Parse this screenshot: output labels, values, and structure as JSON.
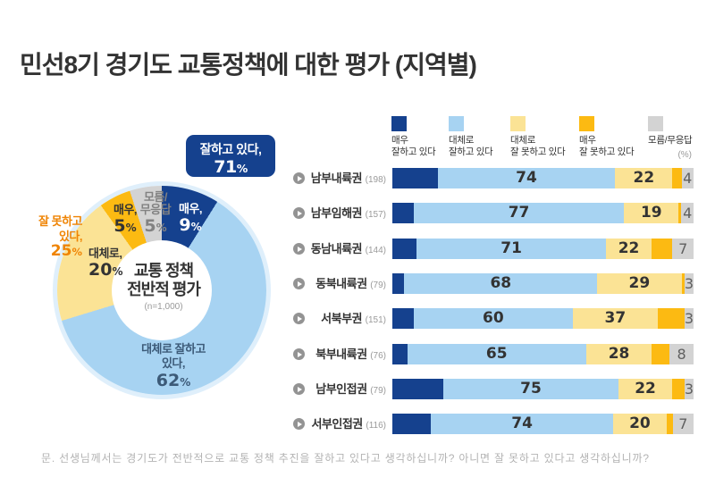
{
  "title": "민선8기 경기도 교통정책에 대한 평가 (지역별)",
  "footnote": "문. 선생님께서는 경기도가 전반적으로 교통 정책 추진을 잘하고 있다고 생각하십니까?  아니면 잘 못하고 있다고 생각하십니까?",
  "unit_label": "(%)",
  "colors": {
    "navy": "#15418e",
    "blue": "#a7d3f2",
    "yellow": "#fbe395",
    "gold": "#fcba12",
    "gray": "#d3d3d3",
    "orange": "#ef8404",
    "title_text": "#333333"
  },
  "donut": {
    "callout": {
      "line1": "잘하고 있다,",
      "value": "71",
      "unit": "%"
    },
    "center": {
      "line1": "교통 정책",
      "line2": "전반적 평가",
      "n": "(n=1,000)"
    },
    "negative_label": {
      "line1": "잘 못하고",
      "line2": "있다,",
      "value": "25",
      "unit": "%"
    },
    "slices": [
      {
        "name": "매우 잘하고 있다",
        "short": "매우,",
        "value": 9,
        "color": "navy"
      },
      {
        "name": "대체로 잘하고 있다",
        "line1": "대체로 잘하고",
        "line2": "있다,",
        "value": 62,
        "color": "blue"
      },
      {
        "name": "대체로 잘 못하고 있다",
        "short": "대체로,",
        "value": 20,
        "color": "yellow"
      },
      {
        "name": "매우 잘 못하고 있다",
        "short": "매우,",
        "value": 5,
        "color": "gold"
      },
      {
        "name": "모름/무응답",
        "line1": "모름/",
        "line2": "무응답",
        "value": 5,
        "color": "gray"
      }
    ]
  },
  "legend": [
    {
      "line1": "매우",
      "line2": "잘하고 있다",
      "color": "navy"
    },
    {
      "line1": "대체로",
      "line2": "잘하고 있다",
      "color": "blue"
    },
    {
      "line1": "대체로",
      "line2": "잘 못하고 있다",
      "color": "yellow"
    },
    {
      "line1": "매우",
      "line2": "잘 못하고 있다",
      "color": "gold"
    },
    {
      "line1": "모름/무응답",
      "line2": "",
      "color": "gray"
    }
  ],
  "chart_data": {
    "type": "bar",
    "orientation": "horizontal",
    "stacked": true,
    "title": "민선8기 경기도 교통정책에 대한 평가 (지역별)",
    "unit": "%",
    "series_names": [
      "매우 잘하고 있다",
      "대체로 잘하고 있다",
      "대체로 잘 못하고 있다",
      "매우 잘 못하고 있다",
      "모름/무응답"
    ],
    "series_colors": [
      "navy",
      "blue",
      "yellow",
      "gold",
      "gray"
    ],
    "rows": [
      {
        "region": "남부내륙권",
        "n": 198,
        "segments": [
          15,
          59,
          19,
          3,
          4
        ],
        "labels": {
          "good": 74,
          "bad": 22,
          "dk": 4
        }
      },
      {
        "region": "남부임해권",
        "n": 157,
        "segments": [
          7,
          70,
          18,
          1,
          4
        ],
        "labels": {
          "good": 77,
          "bad": 19,
          "dk": 4
        }
      },
      {
        "region": "동남내륙권",
        "n": 144,
        "segments": [
          8,
          63,
          15,
          7,
          7
        ],
        "labels": {
          "good": 71,
          "bad": 22,
          "dk": 7
        }
      },
      {
        "region": "동북내륙권",
        "n": 79,
        "segments": [
          4,
          64,
          28,
          1,
          3
        ],
        "labels": {
          "good": 68,
          "bad": 29,
          "dk": 3
        }
      },
      {
        "region": "서북부권",
        "n": 151,
        "segments": [
          7,
          53,
          28,
          9,
          3
        ],
        "labels": {
          "good": 60,
          "bad": 37,
          "dk": 3
        }
      },
      {
        "region": "북부내륙권",
        "n": 76,
        "segments": [
          5,
          60,
          22,
          6,
          8
        ],
        "labels": {
          "good": 65,
          "bad": 28,
          "dk": 8
        }
      },
      {
        "region": "남부인접권",
        "n": 79,
        "segments": [
          17,
          58,
          18,
          4,
          3
        ],
        "labels": {
          "good": 75,
          "bad": 22,
          "dk": 3
        }
      },
      {
        "region": "서부인접권",
        "n": 116,
        "segments": [
          13,
          61,
          18,
          2,
          7
        ],
        "labels": {
          "good": 74,
          "bad": 20,
          "dk": 7
        }
      }
    ],
    "donut": {
      "title": "교통 정책 전반적 평가",
      "n": 1000,
      "values": {
        "매우 잘하고 있다": 9,
        "대체로 잘하고 있다": 62,
        "대체로 잘 못하고 있다": 20,
        "매우 잘 못하고 있다": 5,
        "모름/무응답": 5
      },
      "aggregates": {
        "잘하고 있다": 71,
        "잘 못하고 있다": 25
      }
    }
  }
}
